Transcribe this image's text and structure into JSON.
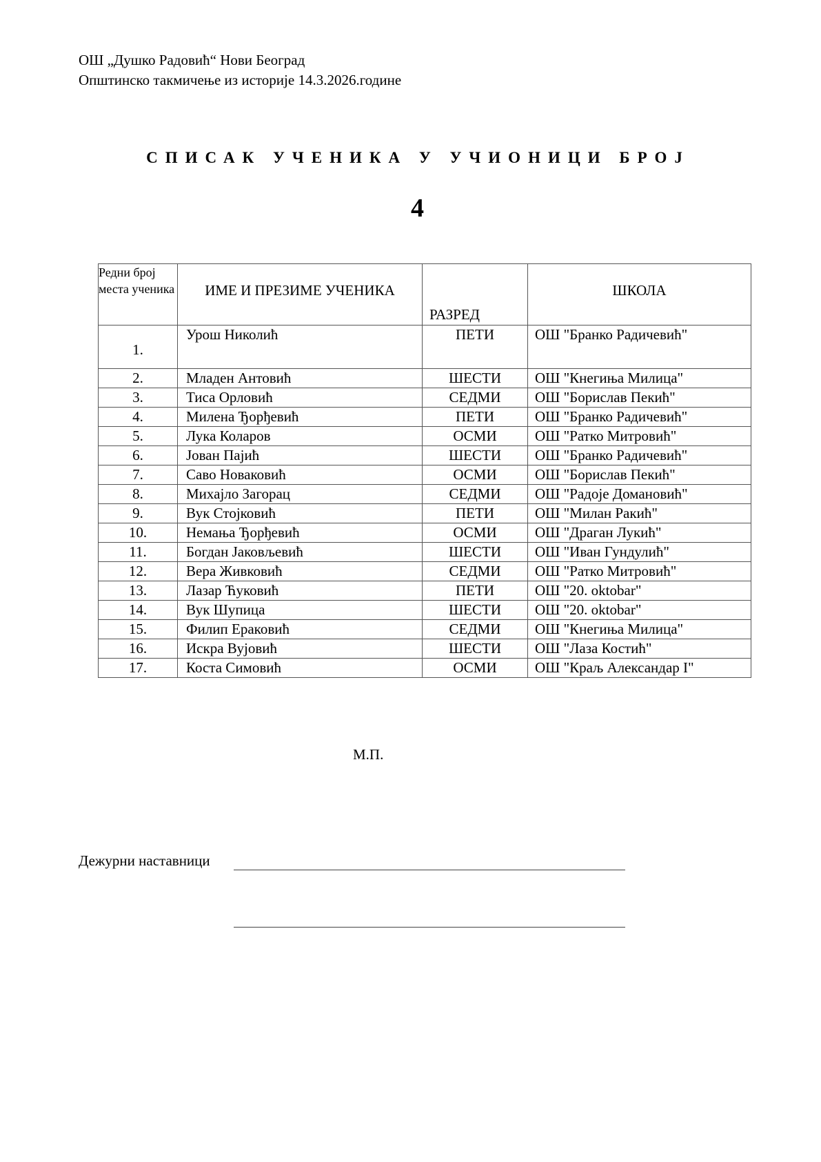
{
  "header": {
    "school": "ОШ „Душко Радовић“ Нови Београд",
    "event": "Општинско такмичење из историје 14.3.2026.године"
  },
  "title": "СПИСАК УЧЕНИКА У УЧИОНИЦИ БРОЈ",
  "room_number": "4",
  "table": {
    "columns": [
      "Редни број места ученика",
      "ИМЕ И ПРЕЗИМЕ УЧЕНИКА",
      "РАЗРЕД",
      "ШКОЛА"
    ],
    "rows": [
      [
        "1.",
        "Урош Николић",
        "ПЕТИ",
        "ОШ \"Бранко Радичевић\""
      ],
      [
        "2.",
        "Младен Антовић",
        "ШЕСТИ",
        "ОШ \"Кнегиња Милица\""
      ],
      [
        "3.",
        "Тиса Орловић",
        "СЕДМИ",
        "ОШ \"Борислав Пекић\""
      ],
      [
        "4.",
        "Милена Ђорђевић",
        "ПЕТИ",
        "ОШ \"Бранко Радичевић\""
      ],
      [
        "5.",
        "Лука Коларов",
        "ОСМИ",
        "ОШ \"Ратко Митровић\""
      ],
      [
        "6.",
        "Јован Пајић",
        "ШЕСТИ",
        "ОШ \"Бранко Радичевић\""
      ],
      [
        "7.",
        "Саво Новаковић",
        "ОСМИ",
        "ОШ \"Борислав Пекић\""
      ],
      [
        "8.",
        "Михајло Загорац",
        "СЕДМИ",
        "ОШ \"Радоје Домановић\""
      ],
      [
        "9.",
        "Вук Стојковић",
        "ПЕТИ",
        "ОШ \"Милан Ракић\""
      ],
      [
        "10.",
        "Немања Ђорђевић",
        "ОСМИ",
        "ОШ \"Драган Лукић\""
      ],
      [
        "11.",
        "Богдан Јаковљевић",
        "ШЕСТИ",
        "ОШ \"Иван Гундулић\""
      ],
      [
        "12.",
        "Вера Живковић",
        "СЕДМИ",
        "ОШ \"Ратко Митровић\""
      ],
      [
        "13.",
        "Лазар Ћуковић",
        "ПЕТИ",
        "ОШ \"20. oktobar\""
      ],
      [
        "14.",
        "Вук Шупица",
        "ШЕСТИ",
        "ОШ \"20. oktobar\""
      ],
      [
        "15.",
        "Филип Ераковић",
        "СЕДМИ",
        "ОШ \"Кнегиња Милица\""
      ],
      [
        "16.",
        "Искра Вујовић",
        "ШЕСТИ",
        "ОШ \"Лаза Костић\""
      ],
      [
        "17.",
        "Коста Симовић",
        "ОСМИ",
        "ОШ \"Краљ Александар I\""
      ]
    ]
  },
  "footer": {
    "stamp": "М.П.",
    "duty_teachers_label": "Дежурни наставници"
  }
}
